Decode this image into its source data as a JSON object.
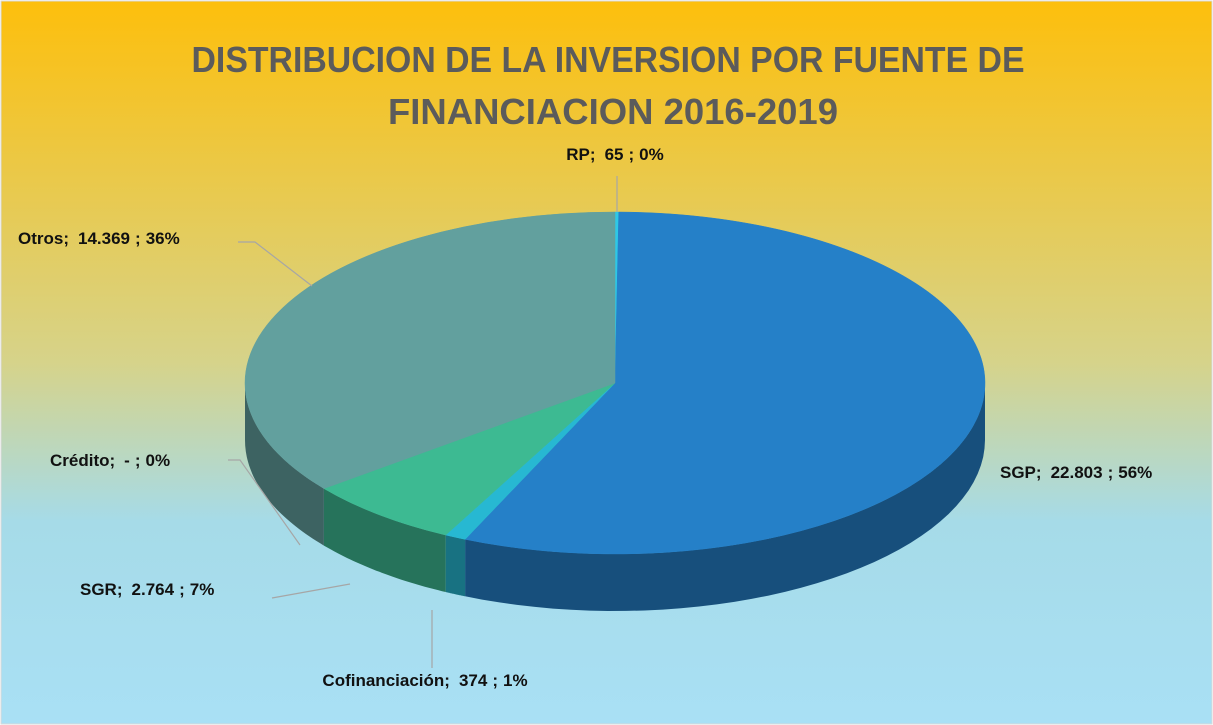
{
  "chart_data": {
    "type": "pie",
    "title": [
      "DISTRIBUCION DE LA INVERSION POR FUENTE DE",
      "FINANCIACION 2016-2019"
    ],
    "categories": [
      "RP",
      "SGP",
      "Cofinanciación",
      "SGR",
      "Crédito",
      "Otros"
    ],
    "values": [
      65,
      22803,
      374,
      2764,
      0,
      14369
    ],
    "value_labels": [
      "65",
      "22.803",
      "374",
      "2.764",
      "-",
      "14.369"
    ],
    "percent_labels": [
      "0%",
      "56%",
      "1%",
      "7%",
      "0%",
      "36%"
    ],
    "separator": ";",
    "colors": [
      "#2ec8e6",
      "#2580c8",
      "#27b8d2",
      "#3dba92",
      "#4fae9c",
      "#62a09e"
    ],
    "view": "3d"
  }
}
